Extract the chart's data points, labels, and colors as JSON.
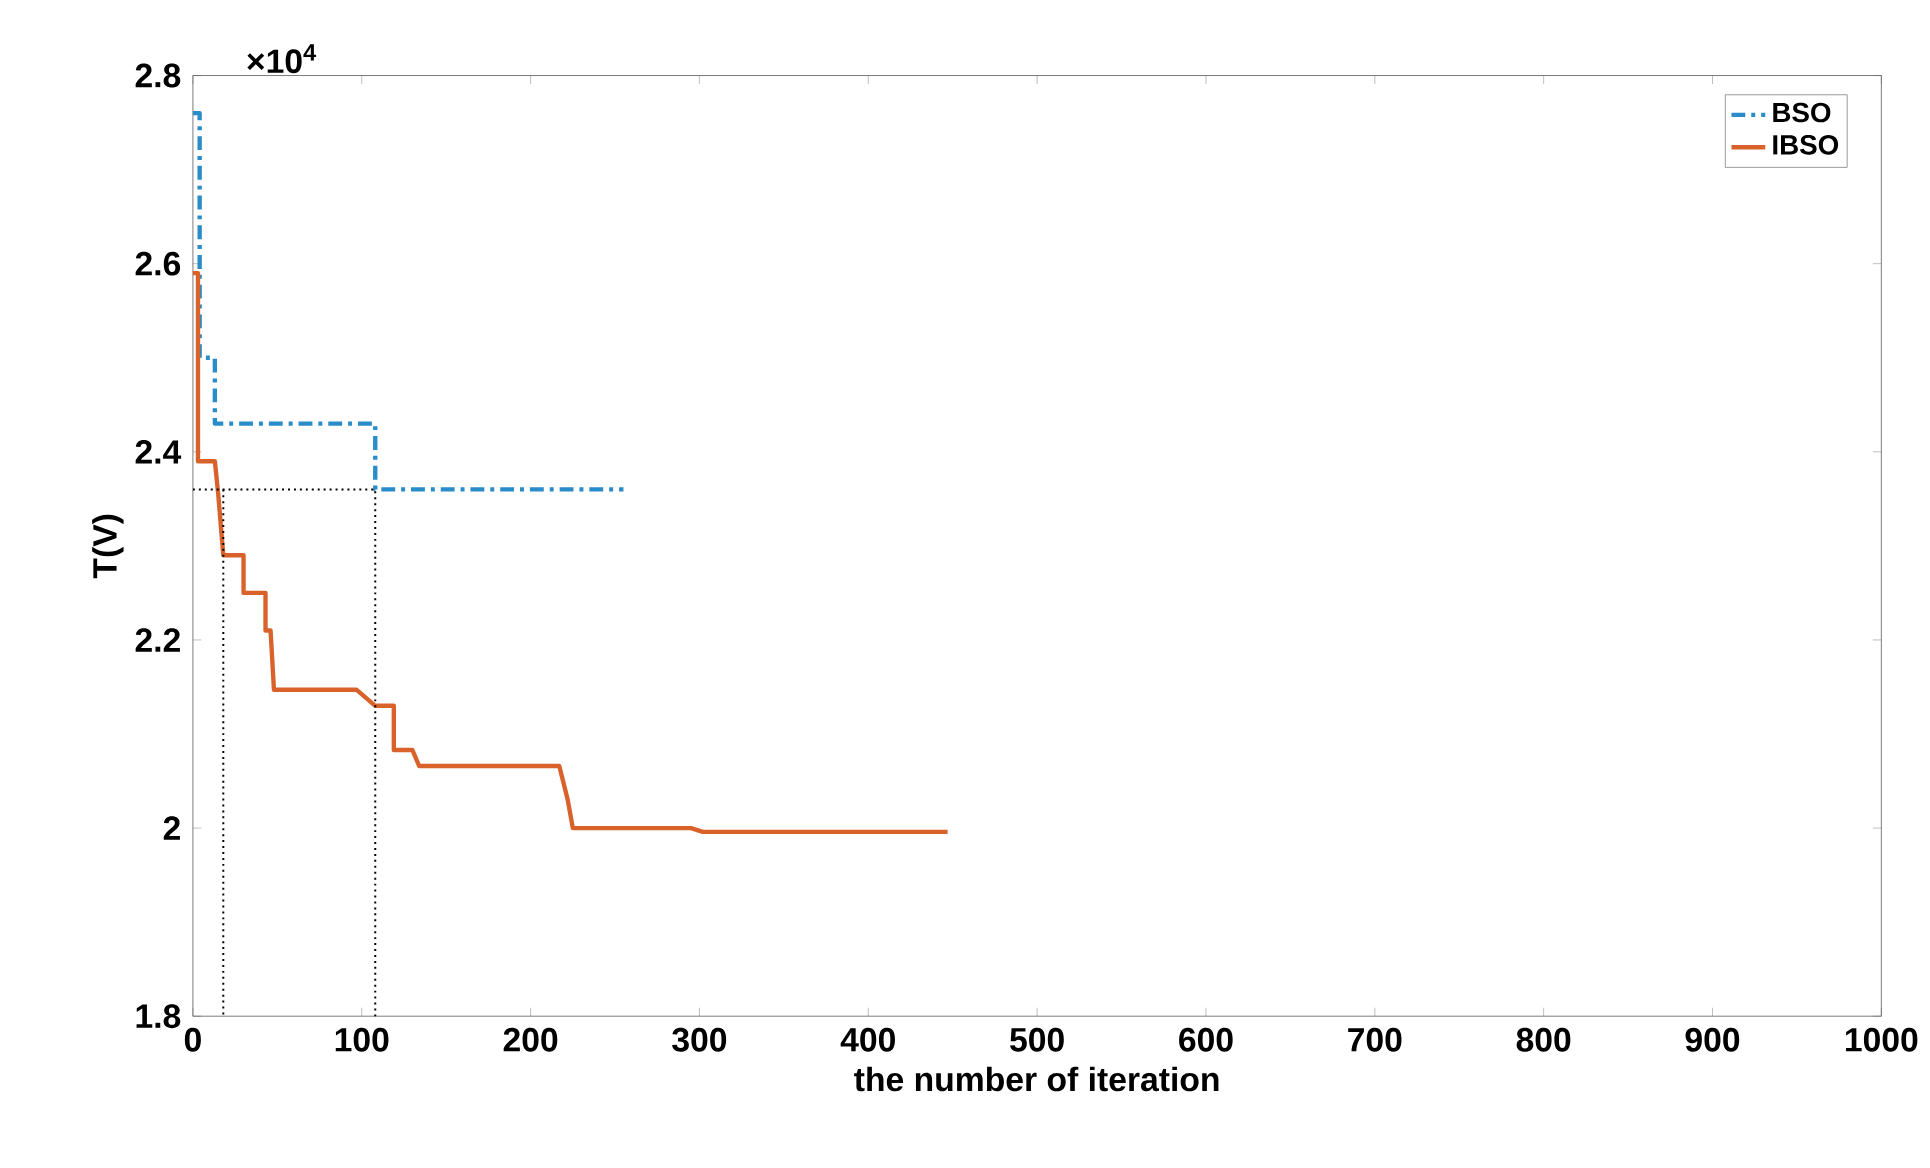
{
  "chart_data": {
    "type": "line",
    "xlabel": "the number of iteration",
    "ylabel": "T(V)",
    "annotations": [
      "×10$^{4}$"
    ],
    "xlim": [
      0,
      1000
    ],
    "ylim": [
      1.8,
      2.8
    ],
    "xticks": [
      0,
      100,
      200,
      300,
      400,
      500,
      600,
      700,
      800,
      900,
      1000
    ],
    "yticks": [
      1.8,
      2,
      2.2,
      2.4,
      2.6,
      2.8
    ],
    "legend": "top right",
    "marker": "none",
    "grid": false,
    "series": [
      {
        "name": "BSO",
        "color": "#2a8cc8",
        "line_style": "dashdot",
        "x": [
          0,
          4,
          4,
          13,
          13,
          108,
          108,
          255
        ],
        "values": [
          2.76,
          2.76,
          2.5,
          2.5,
          2.43,
          2.43,
          2.36,
          2.36
        ]
      },
      {
        "name": "IBSO",
        "color": "#d9622b",
        "line_style": "solid",
        "x": [
          0,
          3,
          3,
          13,
          15,
          18,
          30,
          30,
          43,
          43,
          46,
          48,
          49,
          97,
          108,
          119,
          119,
          130,
          134,
          217,
          222,
          225,
          295,
          302,
          447
        ],
        "values": [
          2.59,
          2.59,
          2.39,
          2.39,
          2.355,
          2.29,
          2.29,
          2.25,
          2.25,
          2.21,
          2.21,
          2.147,
          2.147,
          2.147,
          2.13,
          2.13,
          2.083,
          2.083,
          2.066,
          2.066,
          2.03,
          2.0,
          2.0,
          1.996,
          1.996
        ]
      },
      {
        "color": "#000000",
        "line_style": "dotted",
        "x": [
          0,
          108,
          108
        ],
        "values": [
          2.36,
          2.36,
          1.8
        ]
      },
      {
        "color": "#000000",
        "line_style": "dotted",
        "x": [
          18,
          18
        ],
        "values": [
          2.36,
          1.8
        ]
      }
    ]
  }
}
